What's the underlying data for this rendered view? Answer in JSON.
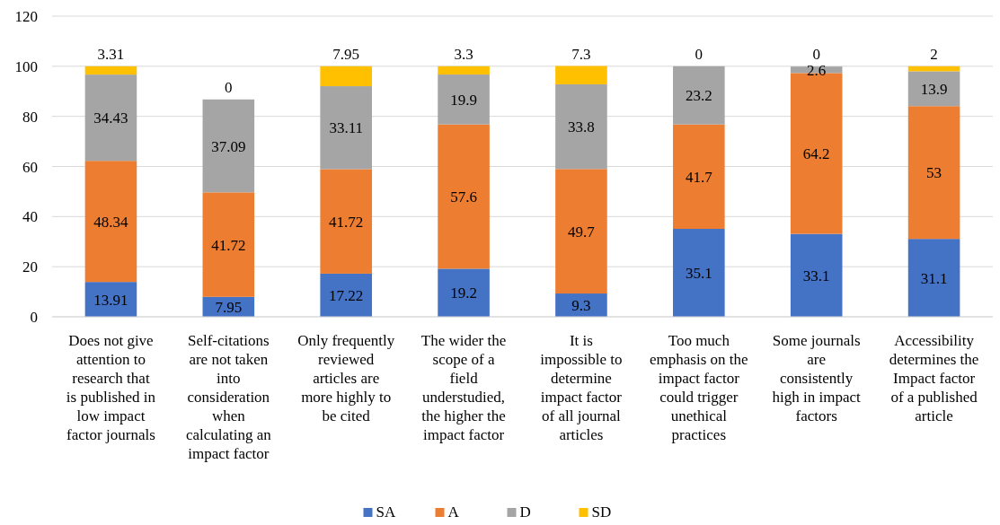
{
  "chart_data": {
    "type": "bar",
    "stacked": true,
    "categories": [
      "Does not give attention to research that is published in low impact factor journals",
      "Self-citations are not taken into consideration when calculating an impact factor",
      "Only frequently reviewed articles are more highly to be cited",
      "The wider the scope of a field understudied, the higher the impact factor",
      "It is impossible to determine impact factor of all journal articles",
      "Too much emphasis on the impact factor could trigger unethical practices",
      "Some journals are consistently high in impact factors",
      "Accessibility determines the Impact factor of a published article"
    ],
    "series": [
      {
        "name": "SA",
        "color": "#4472c4",
        "values": [
          13.91,
          7.95,
          17.22,
          19.2,
          9.3,
          35.1,
          33.1,
          31.1
        ]
      },
      {
        "name": "A",
        "color": "#ed7d31",
        "values": [
          48.34,
          41.72,
          41.72,
          57.6,
          49.7,
          41.7,
          64.2,
          53
        ]
      },
      {
        "name": "D",
        "color": "#a5a5a5",
        "values": [
          34.43,
          37.09,
          33.11,
          19.9,
          33.8,
          23.2,
          2.6,
          13.9
        ]
      },
      {
        "name": "SD",
        "color": "#ffc000",
        "values": [
          3.31,
          0,
          7.95,
          3.3,
          7.3,
          0,
          0,
          2
        ]
      }
    ],
    "ylim": [
      0,
      120
    ],
    "yticks": [
      0,
      20,
      40,
      60,
      80,
      100,
      120
    ],
    "grid": "y",
    "legend": "bottom",
    "data_labels": true
  }
}
